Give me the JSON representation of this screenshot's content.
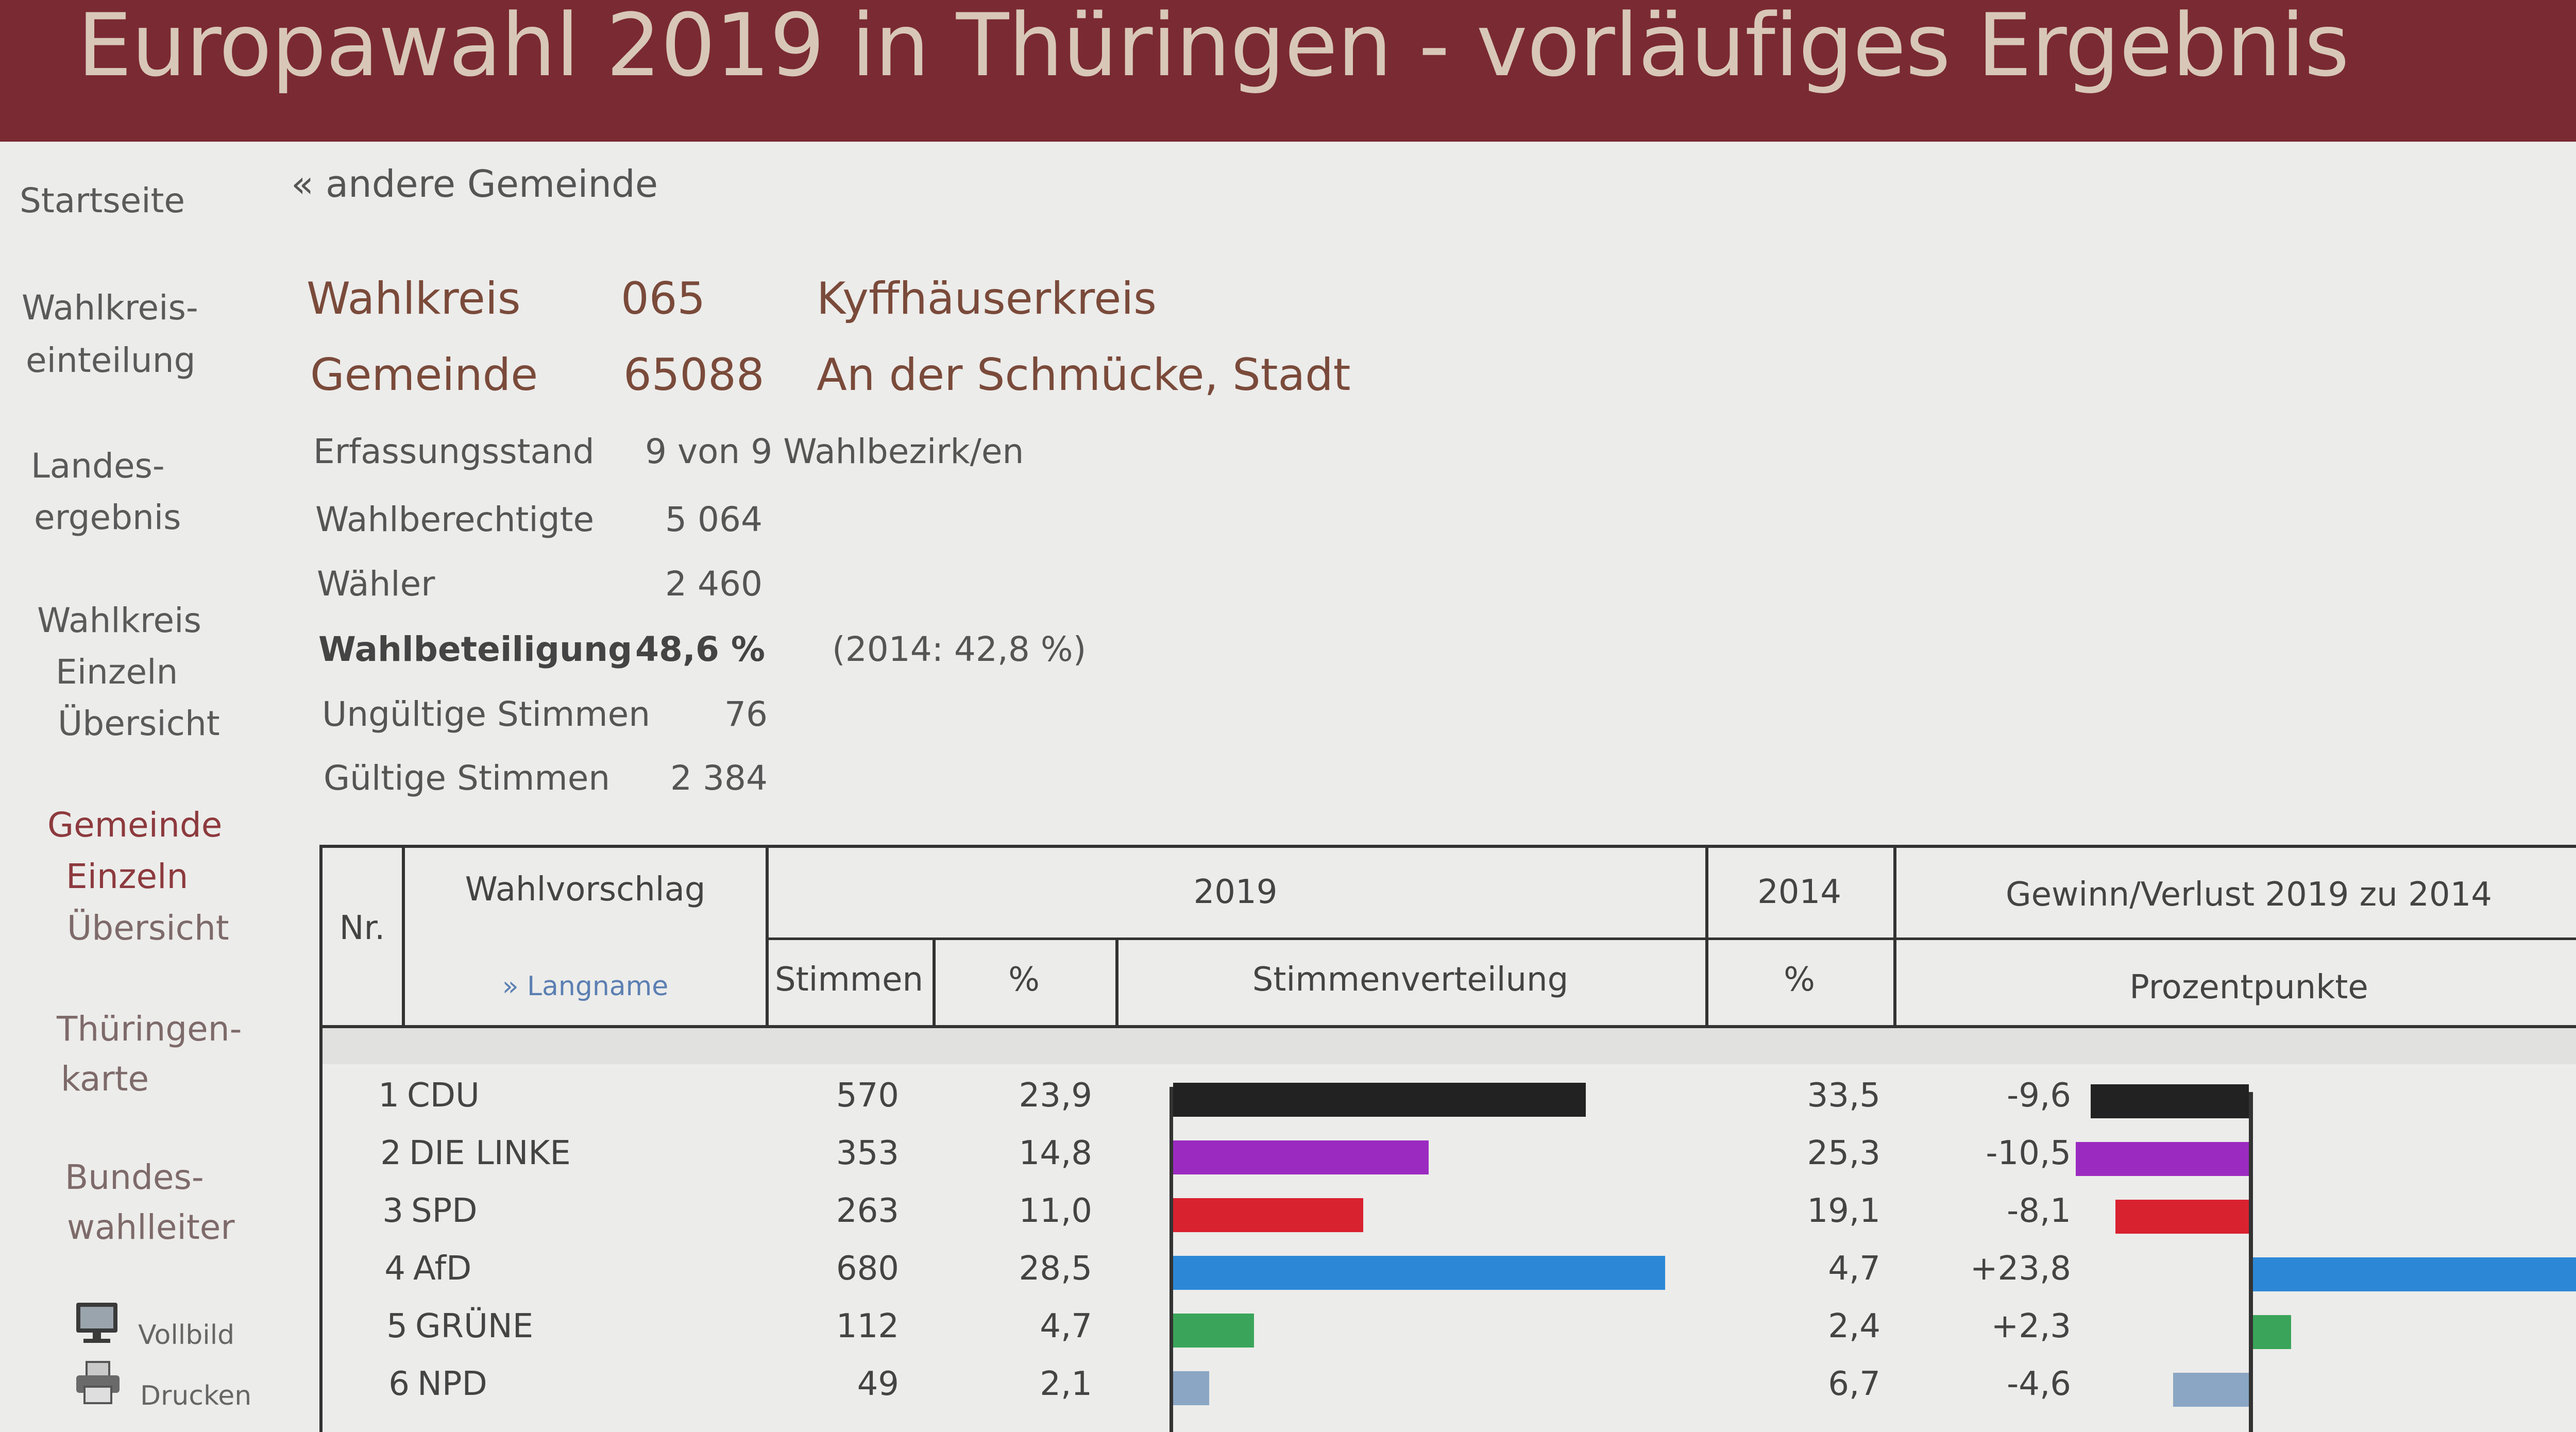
{
  "header": {
    "title": "Europawahl 2019 in Thüringen - vorläufiges Ergebnis"
  },
  "sidebar": {
    "items": [
      {
        "label": "Startseite"
      },
      {
        "label": "Wahlkreis-",
        "label2": "einteilung"
      },
      {
        "label": "Landes-",
        "label2": "ergebnis"
      },
      {
        "label": "Wahlkreis",
        "label2": "Einzeln",
        "label3": "Übersicht"
      },
      {
        "label": "Gemeinde",
        "label2": "Einzeln",
        "label3": "Übersicht"
      },
      {
        "label": "Thüringen-",
        "label2": "karte"
      },
      {
        "label": "Bundes-",
        "label2": "wahlleiter"
      }
    ],
    "tools": [
      {
        "label": "Vollbild",
        "icon": "monitor-icon"
      },
      {
        "label": "Drucken",
        "icon": "printer-icon"
      }
    ]
  },
  "back_link": "« andere Gemeinde",
  "info": {
    "wahlkreis_label": "Wahlkreis",
    "wahlkreis_nr": "065",
    "wahlkreis_name": "Kyffhäuserkreis",
    "gemeinde_label": "Gemeinde",
    "gemeinde_nr": "65088",
    "gemeinde_name": "An der Schmücke, Stadt",
    "erfassung_label": "Erfassungsstand",
    "erfassung_value": "9 von 9 Wahlbezirk/en",
    "wahlberechtigte_label": "Wahlberechtigte",
    "wahlberechtigte_value": "5 064",
    "waehler_label": "Wähler",
    "waehler_value": "2 460",
    "beteiligung_label": "Wahlbeteiligung",
    "beteiligung_value": "48,6 %",
    "beteiligung_2014": "(2014: 42,8 %)",
    "ungueltig_label": "Ungültige Stimmen",
    "ungueltig_value": "76",
    "gueltig_label": "Gültige Stimmen",
    "gueltig_value": "2 384"
  },
  "table": {
    "headers": {
      "nr": "Nr.",
      "wahlvorschlag": "Wahlvorschlag",
      "langname": "» Langname",
      "y2019": "2019",
      "y2014": "2014",
      "gewinn": "Gewinn/Verlust 2019 zu 2014",
      "stimmen": "Stimmen",
      "pct": "%",
      "verteilung": "Stimmenverteilung",
      "pct2014": "%",
      "prozentpunkte": "Prozentpunkte"
    },
    "rows": [
      {
        "nr": "1",
        "party": "CDU",
        "stimmen": "570",
        "pct": "23,9",
        "pct_value": 23.9,
        "pct2014": "33,5",
        "diff": "-9,6",
        "diff_value": -9.6,
        "color": "#222222"
      },
      {
        "nr": "2",
        "party": "DIE LINKE",
        "stimmen": "353",
        "pct": "14,8",
        "pct_value": 14.8,
        "pct2014": "25,3",
        "diff": "-10,5",
        "diff_value": -10.5,
        "color": "#9b2bc0"
      },
      {
        "nr": "3",
        "party": "SPD",
        "stimmen": "263",
        "pct": "11,0",
        "pct_value": 11.0,
        "pct2014": "19,1",
        "diff": "-8,1",
        "diff_value": -8.1,
        "color": "#d92230"
      },
      {
        "nr": "4",
        "party": "AfD",
        "stimmen": "680",
        "pct": "28,5",
        "pct_value": 28.5,
        "pct2014": "4,7",
        "diff": "+23,8",
        "diff_value": 23.8,
        "color": "#2c88d6"
      },
      {
        "nr": "5",
        "party": "GRÜNE",
        "stimmen": "112",
        "pct": "4,7",
        "pct_value": 4.7,
        "pct2014": "2,4",
        "diff": "+2,3",
        "diff_value": 2.3,
        "color": "#3aa55a"
      },
      {
        "nr": "6",
        "party": "NPD",
        "stimmen": "49",
        "pct": "2,1",
        "pct_value": 2.1,
        "pct2014": "6,7",
        "diff": "-4,6",
        "diff_value": -4.6,
        "color": "#8aa6c4"
      }
    ]
  }
}
